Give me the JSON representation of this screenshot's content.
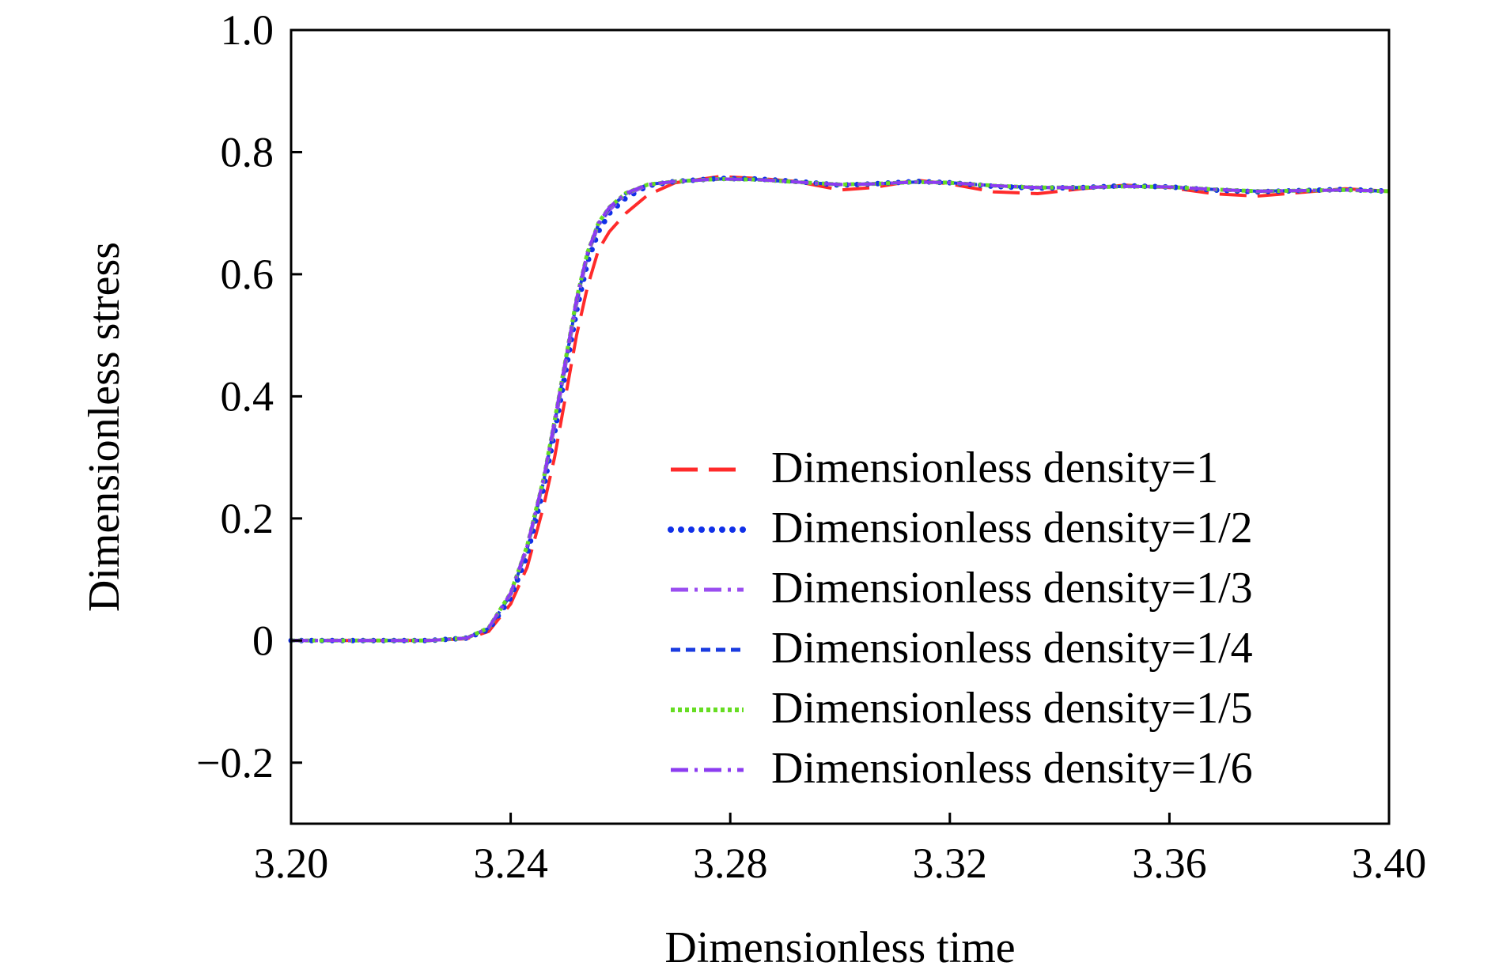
{
  "chart_data": {
    "type": "line",
    "title": "",
    "xlabel": "Dimensionless time",
    "ylabel": "Dimensionless stress",
    "xlim": [
      3.2,
      3.4
    ],
    "ylim": [
      -0.3,
      1.0
    ],
    "x_ticks": [
      "3.20",
      "3.24",
      "3.28",
      "3.32",
      "3.36",
      "3.40"
    ],
    "y_ticks": [
      "−0.2",
      "0",
      "0.2",
      "0.4",
      "0.6",
      "0.8",
      "1.0"
    ],
    "grid": false,
    "legend_position": "bottom-right",
    "series": [
      {
        "name": "Dimensionless density=1",
        "color": "#ff2a2a",
        "dash": "dashed-long",
        "points": [
          [
            3.2,
            0.0
          ],
          [
            3.215,
            0.0
          ],
          [
            3.225,
            0.0
          ],
          [
            3.232,
            0.003
          ],
          [
            3.236,
            0.015
          ],
          [
            3.24,
            0.06
          ],
          [
            3.243,
            0.12
          ],
          [
            3.246,
            0.22
          ],
          [
            3.248,
            0.3
          ],
          [
            3.25,
            0.4
          ],
          [
            3.252,
            0.5
          ],
          [
            3.254,
            0.58
          ],
          [
            3.256,
            0.64
          ],
          [
            3.258,
            0.67
          ],
          [
            3.261,
            0.7
          ],
          [
            3.265,
            0.73
          ],
          [
            3.27,
            0.75
          ],
          [
            3.278,
            0.76
          ],
          [
            3.285,
            0.757
          ],
          [
            3.292,
            0.752
          ],
          [
            3.3,
            0.738
          ],
          [
            3.306,
            0.742
          ],
          [
            3.314,
            0.754
          ],
          [
            3.32,
            0.748
          ],
          [
            3.328,
            0.735
          ],
          [
            3.336,
            0.732
          ],
          [
            3.344,
            0.74
          ],
          [
            3.352,
            0.746
          ],
          [
            3.36,
            0.742
          ],
          [
            3.368,
            0.732
          ],
          [
            3.376,
            0.728
          ],
          [
            3.384,
            0.734
          ],
          [
            3.392,
            0.74
          ],
          [
            3.4,
            0.736
          ]
        ]
      },
      {
        "name": "Dimensionless density=1/2",
        "color": "#1030e8",
        "dash": "dotted-round",
        "points": [
          [
            3.2,
            0.0
          ],
          [
            3.215,
            0.0
          ],
          [
            3.225,
            0.0
          ],
          [
            3.232,
            0.004
          ],
          [
            3.236,
            0.018
          ],
          [
            3.24,
            0.07
          ],
          [
            3.243,
            0.14
          ],
          [
            3.246,
            0.25
          ],
          [
            3.248,
            0.34
          ],
          [
            3.25,
            0.44
          ],
          [
            3.252,
            0.54
          ],
          [
            3.254,
            0.62
          ],
          [
            3.256,
            0.67
          ],
          [
            3.258,
            0.7
          ],
          [
            3.261,
            0.725
          ],
          [
            3.265,
            0.745
          ],
          [
            3.27,
            0.752
          ],
          [
            3.278,
            0.757
          ],
          [
            3.285,
            0.756
          ],
          [
            3.292,
            0.752
          ],
          [
            3.3,
            0.746
          ],
          [
            3.306,
            0.748
          ],
          [
            3.314,
            0.752
          ],
          [
            3.32,
            0.75
          ],
          [
            3.328,
            0.744
          ],
          [
            3.336,
            0.741
          ],
          [
            3.344,
            0.742
          ],
          [
            3.352,
            0.745
          ],
          [
            3.36,
            0.743
          ],
          [
            3.368,
            0.738
          ],
          [
            3.376,
            0.735
          ],
          [
            3.384,
            0.737
          ],
          [
            3.392,
            0.739
          ],
          [
            3.4,
            0.736
          ]
        ]
      },
      {
        "name": "Dimensionless density=1/3",
        "color": "#9a4df0",
        "dash": "dash-dot",
        "points": [
          [
            3.2,
            0.0
          ],
          [
            3.215,
            0.0
          ],
          [
            3.225,
            0.0
          ],
          [
            3.232,
            0.004
          ],
          [
            3.236,
            0.02
          ],
          [
            3.24,
            0.075
          ],
          [
            3.243,
            0.15
          ],
          [
            3.246,
            0.26
          ],
          [
            3.248,
            0.35
          ],
          [
            3.25,
            0.45
          ],
          [
            3.252,
            0.55
          ],
          [
            3.254,
            0.63
          ],
          [
            3.256,
            0.68
          ],
          [
            3.258,
            0.705
          ],
          [
            3.261,
            0.73
          ],
          [
            3.265,
            0.746
          ],
          [
            3.27,
            0.752
          ],
          [
            3.278,
            0.756
          ],
          [
            3.285,
            0.755
          ],
          [
            3.292,
            0.751
          ],
          [
            3.3,
            0.747
          ],
          [
            3.306,
            0.748
          ],
          [
            3.314,
            0.751
          ],
          [
            3.32,
            0.75
          ],
          [
            3.328,
            0.745
          ],
          [
            3.336,
            0.742
          ],
          [
            3.344,
            0.742
          ],
          [
            3.352,
            0.744
          ],
          [
            3.36,
            0.743
          ],
          [
            3.368,
            0.739
          ],
          [
            3.376,
            0.736
          ],
          [
            3.384,
            0.737
          ],
          [
            3.392,
            0.738
          ],
          [
            3.4,
            0.736
          ]
        ]
      },
      {
        "name": "Dimensionless density=1/4",
        "color": "#1a3be0",
        "dash": "dashed-short",
        "points": [
          [
            3.2,
            0.0
          ],
          [
            3.215,
            0.0
          ],
          [
            3.225,
            0.0
          ],
          [
            3.232,
            0.004
          ],
          [
            3.236,
            0.02
          ],
          [
            3.24,
            0.075
          ],
          [
            3.243,
            0.15
          ],
          [
            3.246,
            0.26
          ],
          [
            3.248,
            0.355
          ],
          [
            3.25,
            0.455
          ],
          [
            3.252,
            0.555
          ],
          [
            3.254,
            0.632
          ],
          [
            3.256,
            0.682
          ],
          [
            3.258,
            0.708
          ],
          [
            3.261,
            0.732
          ],
          [
            3.265,
            0.747
          ],
          [
            3.27,
            0.752
          ],
          [
            3.278,
            0.756
          ],
          [
            3.285,
            0.755
          ],
          [
            3.292,
            0.751
          ],
          [
            3.3,
            0.747
          ],
          [
            3.306,
            0.748
          ],
          [
            3.314,
            0.751
          ],
          [
            3.32,
            0.75
          ],
          [
            3.328,
            0.745
          ],
          [
            3.336,
            0.742
          ],
          [
            3.344,
            0.742
          ],
          [
            3.352,
            0.744
          ],
          [
            3.36,
            0.743
          ],
          [
            3.368,
            0.739
          ],
          [
            3.376,
            0.736
          ],
          [
            3.384,
            0.737
          ],
          [
            3.392,
            0.738
          ],
          [
            3.4,
            0.736
          ]
        ]
      },
      {
        "name": "Dimensionless density=1/5",
        "color": "#66dd22",
        "dash": "dotted-fine",
        "points": [
          [
            3.2,
            0.0
          ],
          [
            3.215,
            0.0
          ],
          [
            3.225,
            0.0
          ],
          [
            3.232,
            0.004
          ],
          [
            3.236,
            0.021
          ],
          [
            3.24,
            0.078
          ],
          [
            3.243,
            0.155
          ],
          [
            3.246,
            0.265
          ],
          [
            3.248,
            0.36
          ],
          [
            3.25,
            0.46
          ],
          [
            3.252,
            0.56
          ],
          [
            3.254,
            0.636
          ],
          [
            3.256,
            0.684
          ],
          [
            3.258,
            0.71
          ],
          [
            3.261,
            0.733
          ],
          [
            3.265,
            0.747
          ],
          [
            3.27,
            0.752
          ],
          [
            3.278,
            0.756
          ],
          [
            3.285,
            0.755
          ],
          [
            3.292,
            0.751
          ],
          [
            3.3,
            0.747
          ],
          [
            3.306,
            0.748
          ],
          [
            3.314,
            0.751
          ],
          [
            3.32,
            0.75
          ],
          [
            3.328,
            0.745
          ],
          [
            3.336,
            0.742
          ],
          [
            3.344,
            0.742
          ],
          [
            3.352,
            0.744
          ],
          [
            3.36,
            0.743
          ],
          [
            3.368,
            0.739
          ],
          [
            3.376,
            0.736
          ],
          [
            3.384,
            0.737
          ],
          [
            3.392,
            0.738
          ],
          [
            3.4,
            0.736
          ]
        ]
      },
      {
        "name": "Dimensionless density=1/6",
        "color": "#8c3cf0",
        "dash": "dash-dot",
        "points": [
          [
            3.2,
            0.0
          ],
          [
            3.215,
            0.0
          ],
          [
            3.225,
            0.0
          ],
          [
            3.232,
            0.004
          ],
          [
            3.236,
            0.021
          ],
          [
            3.24,
            0.078
          ],
          [
            3.243,
            0.155
          ],
          [
            3.246,
            0.265
          ],
          [
            3.248,
            0.36
          ],
          [
            3.25,
            0.46
          ],
          [
            3.252,
            0.56
          ],
          [
            3.254,
            0.636
          ],
          [
            3.256,
            0.684
          ],
          [
            3.258,
            0.71
          ],
          [
            3.261,
            0.733
          ],
          [
            3.265,
            0.747
          ],
          [
            3.27,
            0.752
          ],
          [
            3.278,
            0.756
          ],
          [
            3.285,
            0.755
          ],
          [
            3.292,
            0.751
          ],
          [
            3.3,
            0.747
          ],
          [
            3.306,
            0.748
          ],
          [
            3.314,
            0.751
          ],
          [
            3.32,
            0.75
          ],
          [
            3.328,
            0.745
          ],
          [
            3.336,
            0.742
          ],
          [
            3.344,
            0.742
          ],
          [
            3.352,
            0.744
          ],
          [
            3.36,
            0.743
          ],
          [
            3.368,
            0.739
          ],
          [
            3.376,
            0.736
          ],
          [
            3.384,
            0.737
          ],
          [
            3.392,
            0.738
          ],
          [
            3.4,
            0.736
          ]
        ]
      }
    ]
  }
}
